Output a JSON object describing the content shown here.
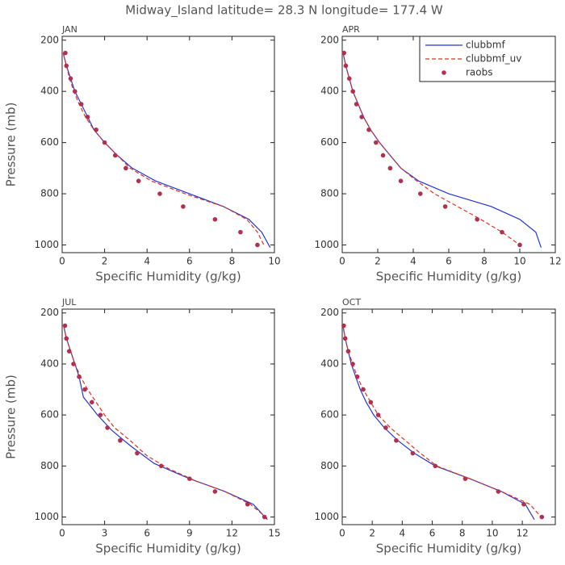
{
  "title": "Midway_Island  latitude= 28.3 N longitude= 177.4 W",
  "chart_data": [
    {
      "type": "line",
      "panel_label": "JAN",
      "xlabel": "Specific Humidity (g/kg)",
      "ylabel": "Pressure (mb)",
      "xlim": [
        0,
        10
      ],
      "xticks": [
        0,
        2,
        4,
        6,
        8,
        10
      ],
      "ylim": [
        1030,
        185
      ],
      "yticks": [
        200,
        400,
        600,
        800,
        1000
      ],
      "legend": false,
      "series": [
        {
          "name": "clubbmf",
          "color": "#2436d8",
          "style": "solid",
          "x": [
            0.05,
            0.2,
            0.4,
            0.6,
            0.9,
            1.2,
            1.5,
            2.0,
            2.6,
            3.3,
            4.4,
            6.0,
            7.6,
            8.8,
            9.4,
            9.8
          ],
          "values": [
            250,
            300,
            350,
            400,
            450,
            500,
            550,
            600,
            650,
            700,
            750,
            800,
            850,
            900,
            950,
            1010
          ]
        },
        {
          "name": "clubbmf_uv",
          "color": "#e0301e",
          "style": "dashed",
          "x": [
            0.05,
            0.2,
            0.35,
            0.55,
            0.8,
            1.1,
            1.5,
            2.0,
            2.6,
            3.2,
            4.2,
            5.8,
            7.6,
            8.7,
            9.2,
            9.5
          ],
          "values": [
            250,
            300,
            350,
            400,
            450,
            500,
            550,
            600,
            650,
            700,
            750,
            800,
            850,
            900,
            950,
            1000
          ]
        },
        {
          "name": "raobs",
          "color": "#b03050",
          "style": "markers",
          "x": [
            0.15,
            0.2,
            0.4,
            0.6,
            0.9,
            1.2,
            1.6,
            2.0,
            2.5,
            3.0,
            3.6,
            4.6,
            5.7,
            7.2,
            8.4,
            9.2
          ],
          "values": [
            250,
            300,
            350,
            400,
            450,
            500,
            550,
            600,
            650,
            700,
            750,
            800,
            850,
            900,
            950,
            1000
          ]
        }
      ]
    },
    {
      "type": "line",
      "panel_label": "APR",
      "xlabel": "Specific Humidity (g/kg)",
      "xlim": [
        0,
        12
      ],
      "xticks": [
        0,
        2,
        4,
        6,
        8,
        10,
        12
      ],
      "ylim": [
        1030,
        185
      ],
      "yticks": [
        200,
        400,
        600,
        800,
        1000
      ],
      "legend": "top-right",
      "series": [
        {
          "name": "clubbmf",
          "color": "#2436d8",
          "style": "solid",
          "x": [
            0.05,
            0.2,
            0.4,
            0.6,
            0.9,
            1.2,
            1.6,
            2.1,
            2.7,
            3.3,
            4.3,
            6.0,
            8.4,
            10.0,
            10.9,
            11.2
          ],
          "values": [
            250,
            300,
            350,
            400,
            450,
            500,
            550,
            600,
            650,
            700,
            750,
            800,
            850,
            900,
            950,
            1010
          ]
        },
        {
          "name": "clubbmf_uv",
          "color": "#e0301e",
          "style": "dashed",
          "x": [
            0.05,
            0.2,
            0.4,
            0.6,
            0.9,
            1.2,
            1.6,
            2.1,
            2.7,
            3.3,
            4.2,
            5.2,
            6.5,
            7.8,
            9.0,
            10.0
          ],
          "values": [
            250,
            300,
            350,
            400,
            450,
            500,
            550,
            600,
            650,
            700,
            750,
            800,
            850,
            900,
            950,
            1000
          ]
        },
        {
          "name": "raobs",
          "color": "#b03050",
          "style": "markers",
          "x": [
            0.1,
            0.2,
            0.4,
            0.6,
            0.8,
            1.1,
            1.5,
            1.9,
            2.3,
            2.7,
            3.3,
            4.4,
            5.8,
            7.6,
            9.0,
            10.0
          ],
          "values": [
            250,
            300,
            350,
            400,
            450,
            500,
            550,
            600,
            650,
            700,
            750,
            800,
            850,
            900,
            950,
            1000
          ]
        }
      ]
    },
    {
      "type": "line",
      "panel_label": "JUL",
      "xlabel": "Specific Humidity (g/kg)",
      "ylabel": "Pressure (mb)",
      "xlim": [
        0,
        15
      ],
      "xticks": [
        0,
        3,
        6,
        9,
        12,
        15
      ],
      "ylim": [
        1030,
        185
      ],
      "yticks": [
        200,
        400,
        600,
        800,
        1000
      ],
      "legend": false,
      "series": [
        {
          "name": "clubbmf",
          "color": "#2436d8",
          "style": "solid",
          "x": [
            0.1,
            0.3,
            0.6,
            0.9,
            1.2,
            1.5,
            2.5,
            3.5,
            4.8,
            6.5,
            9.0,
            11.5,
            13.5,
            14.5
          ],
          "values": [
            250,
            300,
            350,
            400,
            450,
            530,
            600,
            660,
            720,
            790,
            850,
            900,
            950,
            1010
          ]
        },
        {
          "name": "clubbmf_uv",
          "color": "#e0301e",
          "style": "dashed",
          "x": [
            0.1,
            0.3,
            0.6,
            0.9,
            1.3,
            1.8,
            2.4,
            3.0,
            3.7,
            4.8,
            6.0,
            7.5,
            9.5,
            11.5,
            13.3,
            14.6
          ],
          "values": [
            250,
            300,
            350,
            400,
            450,
            500,
            550,
            600,
            650,
            700,
            760,
            810,
            860,
            900,
            950,
            1010
          ]
        },
        {
          "name": "raobs",
          "color": "#b03050",
          "style": "markers",
          "x": [
            0.2,
            0.3,
            0.5,
            0.8,
            1.2,
            1.6,
            2.1,
            2.7,
            3.2,
            4.1,
            5.3,
            7.0,
            9.0,
            10.8,
            13.1,
            14.3
          ],
          "values": [
            250,
            300,
            350,
            400,
            450,
            500,
            550,
            600,
            650,
            700,
            750,
            800,
            850,
            900,
            950,
            1000
          ]
        }
      ]
    },
    {
      "type": "line",
      "panel_label": "OCT",
      "xlabel": "Specific Humidity (g/kg)",
      "xlim": [
        0,
        14.2
      ],
      "xticks": [
        0,
        2,
        4,
        6,
        8,
        10,
        12
      ],
      "ylim": [
        1030,
        185
      ],
      "yticks": [
        200,
        400,
        600,
        800,
        1000
      ],
      "legend": false,
      "series": [
        {
          "name": "clubbmf",
          "color": "#2436d8",
          "style": "solid",
          "x": [
            0.05,
            0.2,
            0.4,
            0.6,
            0.9,
            1.2,
            1.6,
            2.1,
            2.8,
            3.7,
            4.8,
            6.2,
            8.5,
            10.6,
            12.2,
            12.8
          ],
          "values": [
            250,
            300,
            350,
            400,
            450,
            500,
            550,
            600,
            650,
            700,
            750,
            800,
            850,
            900,
            950,
            1010
          ]
        },
        {
          "name": "clubbmf_uv",
          "color": "#e0301e",
          "style": "dashed",
          "x": [
            0.05,
            0.2,
            0.4,
            0.7,
            1.0,
            1.4,
            1.9,
            2.4,
            3.2,
            4.2,
            5.2,
            6.3,
            8.5,
            10.6,
            12.5,
            13.4
          ],
          "values": [
            250,
            300,
            350,
            400,
            450,
            500,
            550,
            600,
            650,
            700,
            750,
            800,
            850,
            900,
            950,
            1010
          ]
        },
        {
          "name": "raobs",
          "color": "#b03050",
          "style": "markers",
          "x": [
            0.1,
            0.2,
            0.4,
            0.7,
            1.0,
            1.4,
            1.9,
            2.4,
            2.9,
            3.6,
            4.7,
            6.2,
            8.2,
            10.4,
            12.1,
            13.3
          ],
          "values": [
            250,
            300,
            350,
            400,
            450,
            500,
            550,
            600,
            650,
            700,
            750,
            800,
            850,
            900,
            950,
            1000
          ]
        }
      ]
    }
  ]
}
